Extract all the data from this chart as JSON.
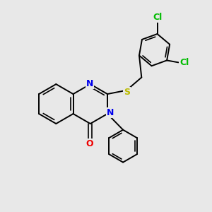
{
  "bg_color": "#e8e8e8",
  "bond_color": "#000000",
  "N_color": "#0000ee",
  "O_color": "#ee0000",
  "S_color": "#bbbb00",
  "Cl_color": "#00bb00",
  "figsize": [
    3.0,
    3.0
  ],
  "dpi": 100,
  "xlim": [
    0,
    10
  ],
  "ylim": [
    0,
    10
  ]
}
